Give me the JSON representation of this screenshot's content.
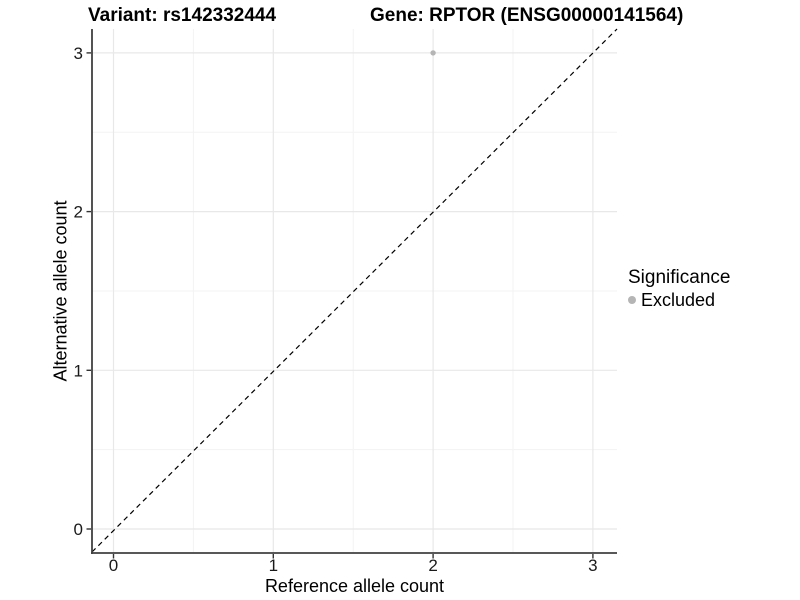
{
  "header": {
    "variant_title": "Variant: rs142332444",
    "gene_title": "Gene: RPTOR (ENSG00000141564)"
  },
  "chart_data": {
    "type": "scatter",
    "title": "Variant: rs142332444  |  Gene: RPTOR (ENSG00000141564)",
    "xlabel": "Reference allele count",
    "ylabel": "Alternative allele count",
    "xlim": [
      -0.15,
      3.15
    ],
    "ylim": [
      -0.15,
      3.15
    ],
    "x_ticks": [
      0,
      1,
      2,
      3
    ],
    "y_ticks": [
      0,
      1,
      2,
      3
    ],
    "x_minor_ticks": [
      0.5,
      1.5,
      2.5
    ],
    "y_minor_ticks": [
      0.5,
      1.5,
      2.5
    ],
    "grid": "major and minor gridlines on, light grey on white panel",
    "series": [
      {
        "name": "Excluded",
        "color": "#b5b5b5",
        "points": [
          {
            "x": 2,
            "y": 3
          }
        ]
      }
    ],
    "reference_line": {
      "kind": "identity y = x",
      "style": "dashed",
      "color": "#000000"
    },
    "legend": {
      "title": "Significance",
      "position": "right",
      "entries": [
        {
          "label": "Excluded",
          "color": "#b5b5b5"
        }
      ]
    }
  },
  "colors": {
    "background": "#ffffff",
    "axis_line": "#404040",
    "tick_mark": "#333333",
    "grid_major": "#e8e8e8",
    "grid_minor": "#f3f3f3",
    "tick_text": "#1a1a1a",
    "point": "#b5b5b5",
    "dashed_line": "#000000"
  }
}
